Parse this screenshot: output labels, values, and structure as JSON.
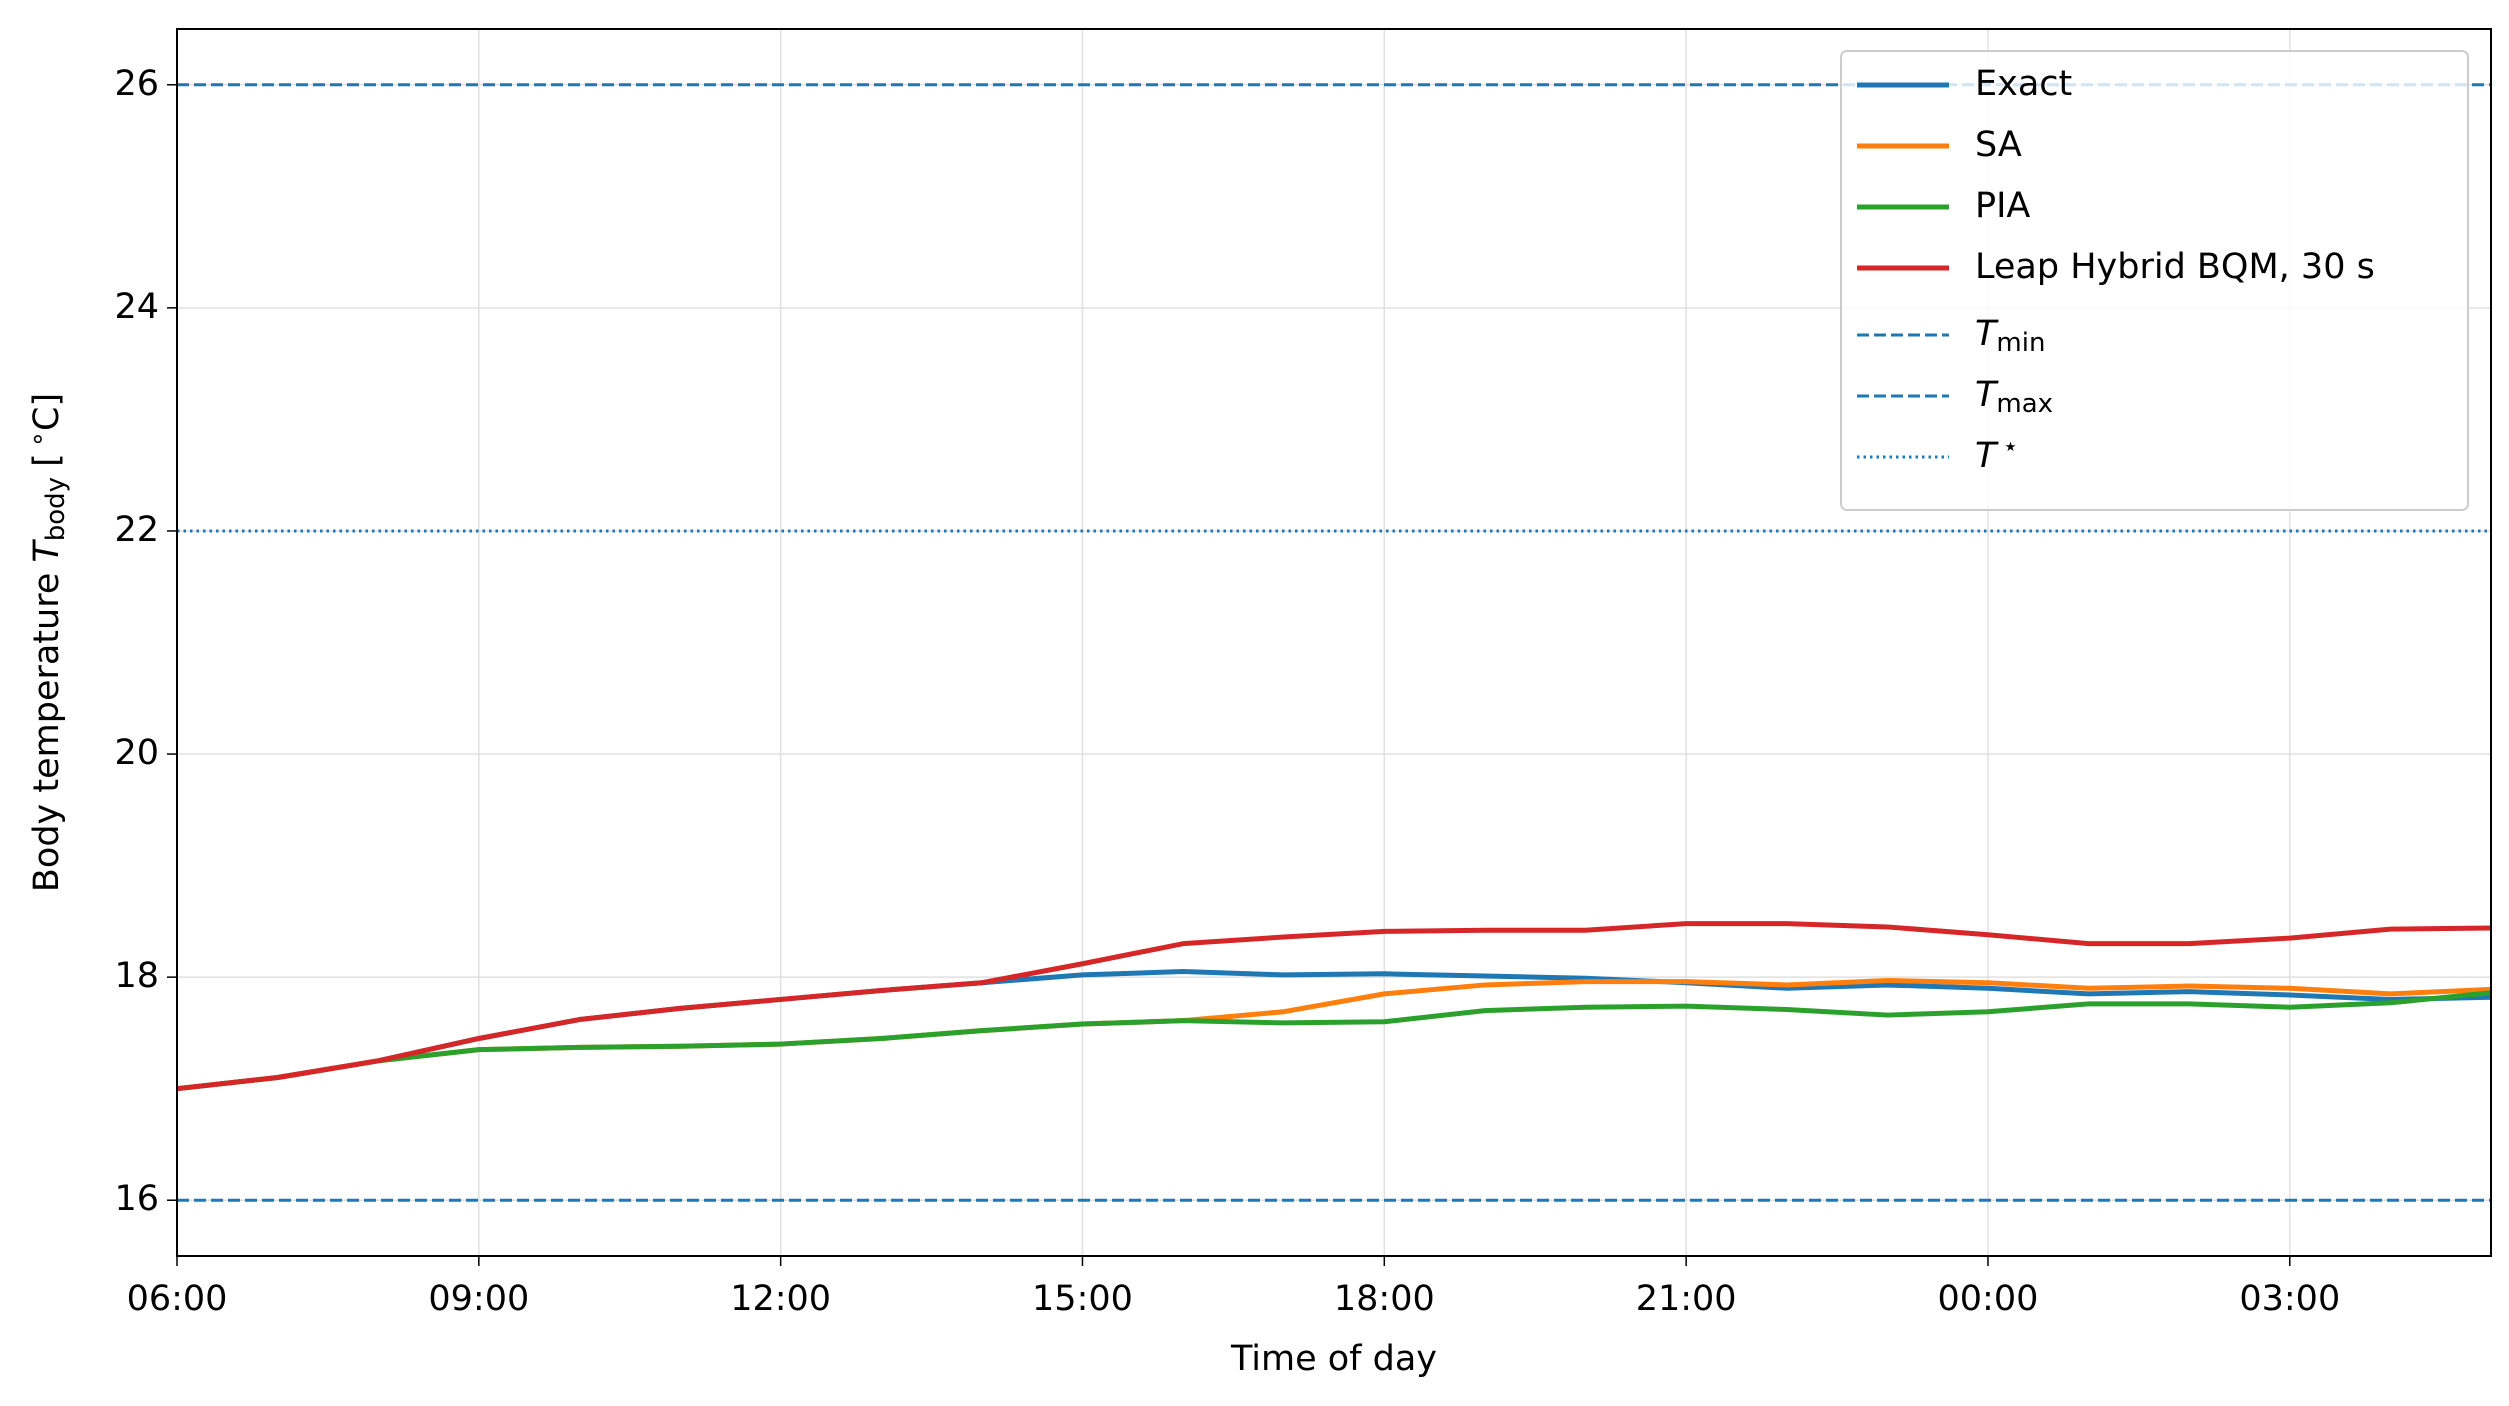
{
  "chart_data": {
    "type": "line",
    "xlabel": "Time of day",
    "ylabel": {
      "text": "Body temperature",
      "symbol": "T",
      "subscript": "body",
      "unit_open": "[",
      "unit_sup": "∘",
      "unit_close": "C]"
    },
    "x": [
      "06:00",
      "07:00",
      "08:00",
      "09:00",
      "10:00",
      "11:00",
      "12:00",
      "13:00",
      "14:00",
      "15:00",
      "16:00",
      "17:00",
      "18:00",
      "19:00",
      "20:00",
      "21:00",
      "22:00",
      "23:00",
      "00:00",
      "01:00",
      "02:00",
      "03:00",
      "04:00",
      "05:00"
    ],
    "xticks": [
      "06:00",
      "09:00",
      "12:00",
      "15:00",
      "18:00",
      "21:00",
      "00:00",
      "03:00"
    ],
    "ylim": [
      15.5,
      26.5
    ],
    "yticks": [
      16,
      18,
      20,
      22,
      24,
      26
    ],
    "grid": true,
    "legend": "upper right",
    "series": [
      {
        "name": "Exact",
        "color": "#1f77b4",
        "values": [
          17.0,
          17.1,
          17.25,
          17.45,
          17.62,
          17.72,
          17.8,
          17.88,
          17.95,
          18.02,
          18.05,
          18.02,
          18.03,
          18.01,
          17.99,
          17.95,
          17.9,
          17.93,
          17.9,
          17.85,
          17.87,
          17.84,
          17.8,
          17.82
        ]
      },
      {
        "name": "SA",
        "color": "#ff7f0e",
        "values": [
          17.0,
          17.1,
          17.25,
          17.35,
          17.37,
          17.38,
          17.4,
          17.45,
          17.52,
          17.58,
          17.61,
          17.69,
          17.85,
          17.93,
          17.96,
          17.96,
          17.93,
          17.97,
          17.95,
          17.9,
          17.92,
          17.9,
          17.85,
          17.89
        ]
      },
      {
        "name": "PIA",
        "color": "#2ca02c",
        "values": [
          17.0,
          17.1,
          17.25,
          17.35,
          17.37,
          17.38,
          17.4,
          17.45,
          17.52,
          17.58,
          17.61,
          17.59,
          17.6,
          17.7,
          17.73,
          17.74,
          17.71,
          17.66,
          17.69,
          17.76,
          17.76,
          17.73,
          17.77,
          17.86
        ]
      },
      {
        "name": "Leap Hybrid BQM, 30 s",
        "color": "#d62728",
        "values": [
          17.0,
          17.1,
          17.25,
          17.45,
          17.62,
          17.72,
          17.8,
          17.88,
          17.95,
          18.12,
          18.3,
          18.36,
          18.41,
          18.42,
          18.42,
          18.48,
          18.48,
          18.45,
          18.38,
          18.3,
          18.3,
          18.35,
          18.43,
          18.44
        ]
      }
    ],
    "hlines": [
      {
        "name": "T",
        "name_sub": "min",
        "value": 16,
        "style": "dashed",
        "color": "#1f77b4"
      },
      {
        "name": "T",
        "name_sub": "max",
        "value": 26,
        "style": "dashed",
        "color": "#1f77b4"
      },
      {
        "name": "T",
        "name_sup": "⋆",
        "value": 22,
        "style": "dotted",
        "color": "#1f77b4"
      }
    ]
  }
}
